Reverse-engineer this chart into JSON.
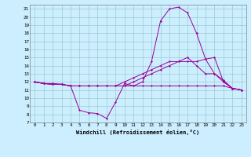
{
  "xlabel": "Windchill (Refroidissement éolien,°C)",
  "bg_color": "#cceeff",
  "grid_color": "#99cccc",
  "line_color": "#990099",
  "xlim": [
    -0.5,
    23.5
  ],
  "ylim": [
    7,
    21.5
  ],
  "xticks": [
    0,
    1,
    2,
    3,
    4,
    5,
    6,
    7,
    8,
    9,
    10,
    11,
    12,
    13,
    14,
    15,
    16,
    17,
    18,
    19,
    20,
    21,
    22,
    23
  ],
  "yticks": [
    7,
    8,
    9,
    10,
    11,
    12,
    13,
    14,
    15,
    16,
    17,
    18,
    19,
    20,
    21
  ],
  "hours": [
    0,
    1,
    2,
    3,
    4,
    5,
    6,
    7,
    8,
    9,
    10,
    11,
    12,
    13,
    14,
    15,
    16,
    17,
    18,
    19,
    20,
    21,
    22,
    23
  ],
  "line1": [
    12,
    11.8,
    11.8,
    11.7,
    11.5,
    8.5,
    8.2,
    8.1,
    7.5,
    9.5,
    11.8,
    11.5,
    12.0,
    14.5,
    19.5,
    21.0,
    21.2,
    20.5,
    18.0,
    14.8,
    13.0,
    12.2,
    11.2,
    11.0
  ],
  "line2": [
    12,
    11.8,
    11.7,
    11.7,
    11.5,
    11.5,
    11.5,
    11.5,
    11.5,
    11.5,
    11.5,
    11.5,
    11.5,
    11.5,
    11.5,
    11.5,
    11.5,
    11.5,
    11.5,
    11.5,
    11.5,
    11.5,
    11.2,
    11.0
  ],
  "line3": [
    12,
    11.8,
    11.7,
    11.7,
    11.5,
    11.5,
    11.5,
    11.5,
    11.5,
    11.5,
    12.0,
    12.5,
    13.0,
    13.5,
    14.0,
    14.5,
    14.5,
    14.5,
    14.5,
    14.8,
    15.0,
    12.0,
    11.2,
    11.0
  ],
  "line4": [
    12,
    11.8,
    11.7,
    11.7,
    11.5,
    11.5,
    11.5,
    11.5,
    11.5,
    11.5,
    11.5,
    12.0,
    12.5,
    13.0,
    13.5,
    14.0,
    14.5,
    15.0,
    14.0,
    13.0,
    13.0,
    12.0,
    11.2,
    11.0
  ]
}
